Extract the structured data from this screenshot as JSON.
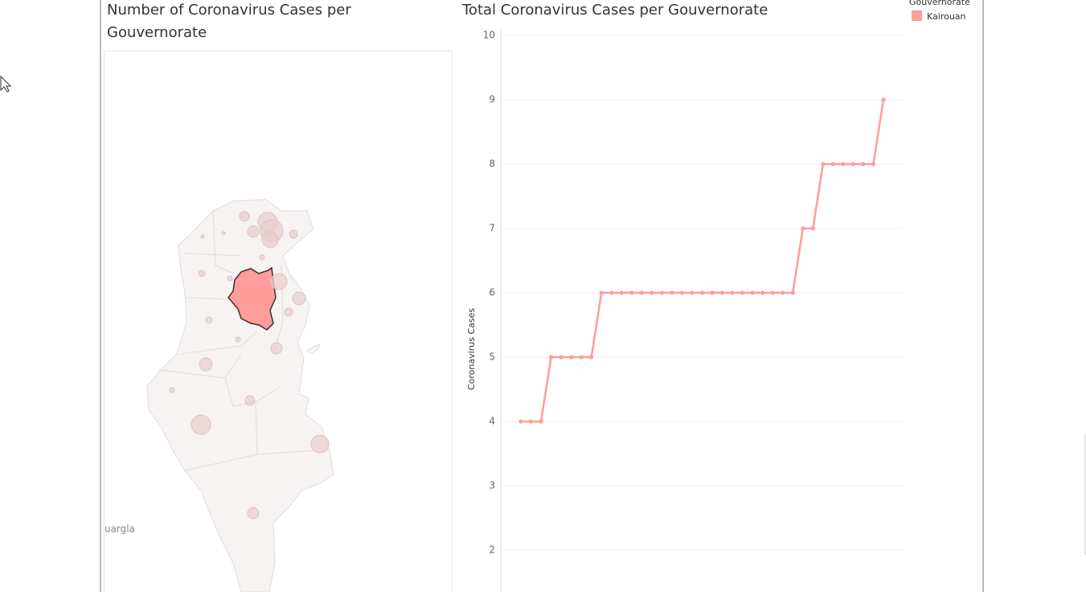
{
  "map": {
    "title": "Number of Coronavirus Cases per Gouvernorate",
    "place_label": "uargla"
  },
  "chart_data": {
    "type": "line",
    "title": "Total Coronavirus Cases per Gouvernorate",
    "y_label": "Coronavirus Cases",
    "legend_title": "Gouvernorate",
    "series": [
      {
        "name": "Kairouan",
        "color": "#ff9d9a",
        "values": [
          4,
          4,
          4,
          5,
          5,
          5,
          5,
          5,
          6,
          6,
          6,
          6,
          6,
          6,
          6,
          6,
          6,
          6,
          6,
          6,
          6,
          6,
          6,
          6,
          6,
          6,
          6,
          6,
          7,
          7,
          8,
          8,
          8,
          8,
          8,
          8,
          9
        ]
      }
    ],
    "ylim": [
      1,
      10
    ],
    "yticks": [
      2,
      3,
      4,
      5,
      6,
      7,
      8,
      9,
      10
    ],
    "grid": true
  }
}
